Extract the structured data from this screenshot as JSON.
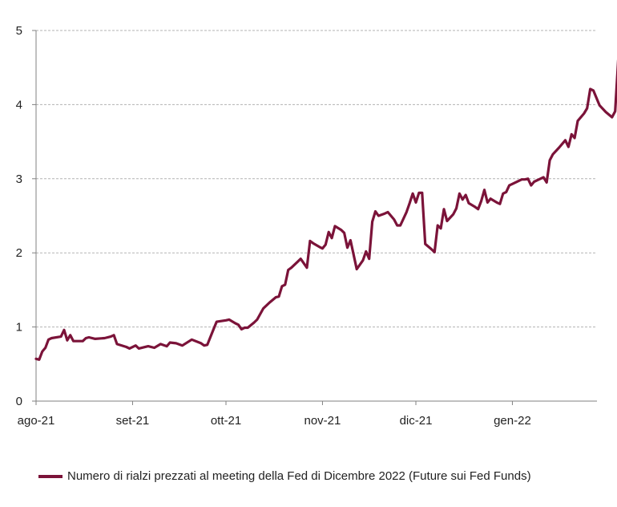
{
  "chart_data": {
    "type": "line",
    "title": "",
    "xlabel": "",
    "ylabel": "",
    "ylim": [
      0,
      5
    ],
    "yticks": [
      0,
      1,
      2,
      3,
      4,
      5
    ],
    "xlim": [
      "2021-08-01",
      "2022-01-29"
    ],
    "xticks": [
      {
        "date": "2021-08-01",
        "label": "ago-21"
      },
      {
        "date": "2021-09-01",
        "label": "set-21"
      },
      {
        "date": "2021-10-01",
        "label": "ott-21"
      },
      {
        "date": "2021-11-01",
        "label": "nov-21"
      },
      {
        "date": "2021-12-01",
        "label": "dic-21"
      },
      {
        "date": "2022-01-01",
        "label": "gen-22"
      }
    ],
    "grid": "horizontal-dashed",
    "legend_position": "bottom",
    "line_color": "#7b1339",
    "series": [
      {
        "name": "Numero di rialzi prezzati al meeting della Fed di Dicembre 2022 (Future sui Fed Funds)",
        "points": [
          [
            "2021-08-01",
            0.57
          ],
          [
            "2021-08-02",
            0.56
          ],
          [
            "2021-08-03",
            0.67
          ],
          [
            "2021-08-04",
            0.72
          ],
          [
            "2021-08-05",
            0.83
          ],
          [
            "2021-08-06",
            0.85
          ],
          [
            "2021-08-09",
            0.87
          ],
          [
            "2021-08-10",
            0.96
          ],
          [
            "2021-08-11",
            0.82
          ],
          [
            "2021-08-12",
            0.89
          ],
          [
            "2021-08-13",
            0.81
          ],
          [
            "2021-08-16",
            0.81
          ],
          [
            "2021-08-17",
            0.85
          ],
          [
            "2021-08-18",
            0.86
          ],
          [
            "2021-08-20",
            0.84
          ],
          [
            "2021-08-23",
            0.85
          ],
          [
            "2021-08-25",
            0.87
          ],
          [
            "2021-08-26",
            0.89
          ],
          [
            "2021-08-27",
            0.77
          ],
          [
            "2021-08-30",
            0.73
          ],
          [
            "2021-08-31",
            0.71
          ],
          [
            "2021-09-02",
            0.75
          ],
          [
            "2021-09-03",
            0.71
          ],
          [
            "2021-09-06",
            0.74
          ],
          [
            "2021-09-08",
            0.72
          ],
          [
            "2021-09-10",
            0.77
          ],
          [
            "2021-09-12",
            0.74
          ],
          [
            "2021-09-13",
            0.79
          ],
          [
            "2021-09-15",
            0.78
          ],
          [
            "2021-09-17",
            0.75
          ],
          [
            "2021-09-20",
            0.83
          ],
          [
            "2021-09-23",
            0.78
          ],
          [
            "2021-09-24",
            0.75
          ],
          [
            "2021-09-25",
            0.76
          ],
          [
            "2021-09-27",
            0.97
          ],
          [
            "2021-09-28",
            1.07
          ],
          [
            "2021-10-01",
            1.09
          ],
          [
            "2021-10-02",
            1.1
          ],
          [
            "2021-10-04",
            1.05
          ],
          [
            "2021-10-05",
            1.03
          ],
          [
            "2021-10-06",
            0.97
          ],
          [
            "2021-10-07",
            0.99
          ],
          [
            "2021-10-08",
            0.99
          ],
          [
            "2021-10-10",
            1.06
          ],
          [
            "2021-10-11",
            1.1
          ],
          [
            "2021-10-13",
            1.25
          ],
          [
            "2021-10-15",
            1.33
          ],
          [
            "2021-10-17",
            1.4
          ],
          [
            "2021-10-18",
            1.41
          ],
          [
            "2021-10-19",
            1.55
          ],
          [
            "2021-10-20",
            1.57
          ],
          [
            "2021-10-21",
            1.77
          ],
          [
            "2021-10-22",
            1.8
          ],
          [
            "2021-10-24",
            1.88
          ],
          [
            "2021-10-25",
            1.92
          ],
          [
            "2021-10-27",
            1.8
          ],
          [
            "2021-10-28",
            2.16
          ],
          [
            "2021-10-29",
            2.13
          ],
          [
            "2021-10-31",
            2.08
          ],
          [
            "2021-11-01",
            2.06
          ],
          [
            "2021-11-02",
            2.11
          ],
          [
            "2021-11-03",
            2.28
          ],
          [
            "2021-11-04",
            2.2
          ],
          [
            "2021-11-05",
            2.36
          ],
          [
            "2021-11-07",
            2.31
          ],
          [
            "2021-11-08",
            2.27
          ],
          [
            "2021-11-09",
            2.07
          ],
          [
            "2021-11-10",
            2.17
          ],
          [
            "2021-11-12",
            1.78
          ],
          [
            "2021-11-14",
            1.9
          ],
          [
            "2021-11-15",
            2.02
          ],
          [
            "2021-11-16",
            1.92
          ],
          [
            "2021-11-17",
            2.42
          ],
          [
            "2021-11-18",
            2.56
          ],
          [
            "2021-11-19",
            2.5
          ],
          [
            "2021-11-21",
            2.53
          ],
          [
            "2021-11-22",
            2.55
          ],
          [
            "2021-11-24",
            2.45
          ],
          [
            "2021-11-25",
            2.37
          ],
          [
            "2021-11-26",
            2.37
          ],
          [
            "2021-11-28",
            2.55
          ],
          [
            "2021-11-29",
            2.67
          ],
          [
            "2021-11-30",
            2.8
          ],
          [
            "2021-12-01",
            2.68
          ],
          [
            "2021-12-02",
            2.81
          ],
          [
            "2021-12-03",
            2.81
          ],
          [
            "2021-12-04",
            2.12
          ],
          [
            "2021-12-06",
            2.05
          ],
          [
            "2021-12-07",
            2.01
          ],
          [
            "2021-12-08",
            2.37
          ],
          [
            "2021-12-09",
            2.33
          ],
          [
            "2021-12-10",
            2.59
          ],
          [
            "2021-12-11",
            2.43
          ],
          [
            "2021-12-13",
            2.52
          ],
          [
            "2021-12-14",
            2.6
          ],
          [
            "2021-12-15",
            2.8
          ],
          [
            "2021-12-16",
            2.72
          ],
          [
            "2021-12-17",
            2.78
          ],
          [
            "2021-12-18",
            2.67
          ],
          [
            "2021-12-20",
            2.62
          ],
          [
            "2021-12-21",
            2.59
          ],
          [
            "2021-12-22",
            2.7
          ],
          [
            "2021-12-23",
            2.85
          ],
          [
            "2021-12-24",
            2.68
          ],
          [
            "2021-12-25",
            2.73
          ],
          [
            "2021-12-27",
            2.68
          ],
          [
            "2021-12-28",
            2.66
          ],
          [
            "2021-12-29",
            2.8
          ],
          [
            "2021-12-30",
            2.82
          ],
          [
            "2021-12-31",
            2.91
          ],
          [
            "2022-01-01",
            2.93
          ],
          [
            "2022-01-03",
            2.97
          ],
          [
            "2022-01-04",
            2.99
          ],
          [
            "2022-01-05",
            2.99
          ],
          [
            "2022-01-06",
            3.0
          ],
          [
            "2022-01-07",
            2.91
          ],
          [
            "2022-01-08",
            2.96
          ],
          [
            "2022-01-10",
            3.0
          ],
          [
            "2022-01-11",
            3.02
          ],
          [
            "2022-01-12",
            2.95
          ],
          [
            "2022-01-13",
            3.25
          ],
          [
            "2022-01-14",
            3.33
          ],
          [
            "2022-01-16",
            3.42
          ],
          [
            "2022-01-18",
            3.52
          ],
          [
            "2022-01-19",
            3.43
          ],
          [
            "2022-01-20",
            3.6
          ],
          [
            "2022-01-21",
            3.55
          ],
          [
            "2022-01-22",
            3.78
          ],
          [
            "2022-01-24",
            3.88
          ],
          [
            "2022-01-25",
            3.95
          ],
          [
            "2022-01-26",
            4.21
          ],
          [
            "2022-01-27",
            4.19
          ],
          [
            "2022-01-29",
            3.99
          ],
          [
            "2022-01-31",
            3.9
          ],
          [
            "2022-02-02",
            3.83
          ],
          [
            "2022-02-03",
            3.91
          ],
          [
            "2022-02-04",
            4.6
          ],
          [
            "2022-02-05",
            4.8
          ]
        ]
      }
    ]
  }
}
